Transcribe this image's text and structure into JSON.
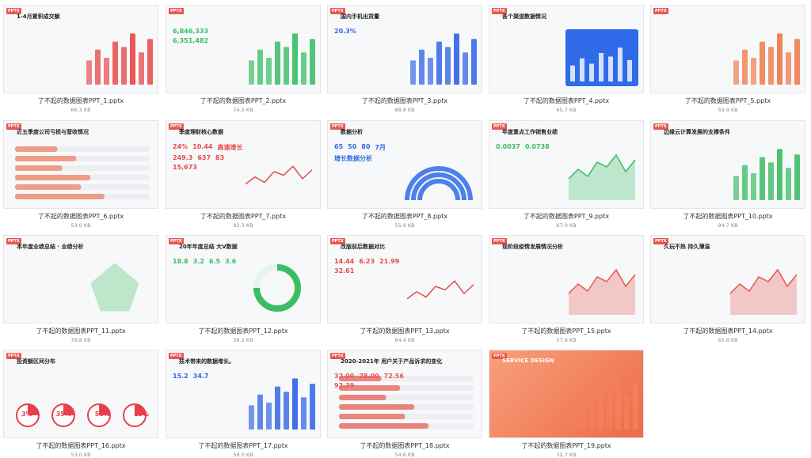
{
  "files": [
    {
      "name": "了不起的数据图表PPT_1.pptx",
      "size": "66.3 KB",
      "thumbnail": {
        "badge": "PPTX",
        "title": "1-4月累积成交额",
        "texts": []
      }
    },
    {
      "name": "了不起的数据图表PPT_2.pptx",
      "size": "74.5 KB",
      "thumbnail": {
        "badge": "PPTX",
        "title": "",
        "texts": [
          "6,846,333",
          "6,351,482"
        ]
      }
    },
    {
      "name": "了不起的数据图表PPT_3.pptx",
      "size": "68.8 KB",
      "thumbnail": {
        "badge": "PPTX",
        "title": "国内手机出货量",
        "texts": [
          "20.3%"
        ]
      }
    },
    {
      "name": "了不起的数据图表PPT_4.pptx",
      "size": "65.7 KB",
      "thumbnail": {
        "badge": "PPTX",
        "title": "各个渠道数据情况",
        "texts": []
      }
    },
    {
      "name": "了不起的数据图表PPT_5.pptx",
      "size": "59.9 KB",
      "thumbnail": {
        "badge": "PPTX",
        "title": "",
        "texts": []
      }
    },
    {
      "name": "了不起的数据图表PPT_6.pptx",
      "size": "53.0 KB",
      "thumbnail": {
        "badge": "PPTX",
        "title": "近五季度公司亏损与营收情况",
        "texts": []
      }
    },
    {
      "name": "了不起的数据图表PPT_7.pptx",
      "size": "92.3 KB",
      "thumbnail": {
        "badge": "PPTX",
        "title": "季度理财核心数据",
        "texts": [
          "24%",
          "10.44",
          "高速增长",
          "249.3",
          "637",
          "83",
          "15,673"
        ]
      }
    },
    {
      "name": "了不起的数据图表PPT_8.pptx",
      "size": "55.9 KB",
      "thumbnail": {
        "badge": "PPTX",
        "title": "数据分析",
        "texts": [
          "65",
          "50",
          "80",
          "7月",
          "增长数据分析"
        ]
      }
    },
    {
      "name": "了不起的数据图表PPT_9.pptx",
      "size": "67.0 KB",
      "thumbnail": {
        "badge": "PPTX",
        "title": "年度重点工作销售业绩",
        "texts": [
          "0.0037",
          "0.0738"
        ]
      }
    },
    {
      "name": "了不起的数据图表PPT_10.pptx",
      "size": "94.7 KB",
      "thumbnail": {
        "badge": "PPTX",
        "title": "边缘云计算发展的支撑条件",
        "texts": []
      }
    },
    {
      "name": "了不起的数据图表PPT_11.pptx",
      "size": "79.8 KB",
      "thumbnail": {
        "badge": "PPTX",
        "title": "本年度业绩总结 · 业绩分析",
        "texts": []
      }
    },
    {
      "name": "了不起的数据图表PPT_12.pptx",
      "size": "58.2 KB",
      "thumbnail": {
        "badge": "PPTX",
        "title": "20年年度总结 大V数据",
        "texts": [
          "18.8",
          "3.2",
          "6.5",
          "3.6"
        ]
      }
    },
    {
      "name": "了不起的数据图表PPT_13.pptx",
      "size": "64.4 KB",
      "thumbnail": {
        "badge": "PPTX",
        "title": "改版前后数据对比",
        "texts": [
          "14.44",
          "6.23",
          "21.99",
          "32.61"
        ]
      }
    },
    {
      "name": "了不起的数据图表PPT_15.pptx",
      "size": "57.9 KB",
      "thumbnail": {
        "badge": "PPTX",
        "title": "现阶段疫情发展情况分析",
        "texts": []
      }
    },
    {
      "name": "了不起的数据图表PPT_14.pptx",
      "size": "65.8 KB",
      "thumbnail": {
        "badge": "PPTX",
        "title": "久玩不热 持久薄温",
        "texts": []
      }
    },
    {
      "name": "了不起的数据图表PPT_16.pptx",
      "size": "53.0 KB",
      "thumbnail": {
        "badge": "PPTX",
        "title": "投资额区间分布",
        "texts": [
          "3%",
          "35%",
          "50%",
          "13%"
        ]
      }
    },
    {
      "name": "了不起的数据图表PPT_17.pptx",
      "size": "58.0 KB",
      "thumbnail": {
        "badge": "PPTX",
        "title": "技术带来的数据增长。",
        "texts": [
          "15.2",
          "34.7"
        ]
      }
    },
    {
      "name": "了不起的数据图表PPT_18.pptx",
      "size": "54.6 KB",
      "thumbnail": {
        "badge": "PPTX",
        "title": "2020-2021年 用户关于产品诉求的变化",
        "texts": [
          "32.00",
          "78.00",
          "72.56",
          "92.39"
        ]
      }
    },
    {
      "name": "了不起的数据图表PPT_19.pptx",
      "size": "32.7 KB",
      "thumbnail": {
        "badge": "PPTX",
        "title": "SERVICE DESIGN",
        "texts": []
      }
    }
  ]
}
